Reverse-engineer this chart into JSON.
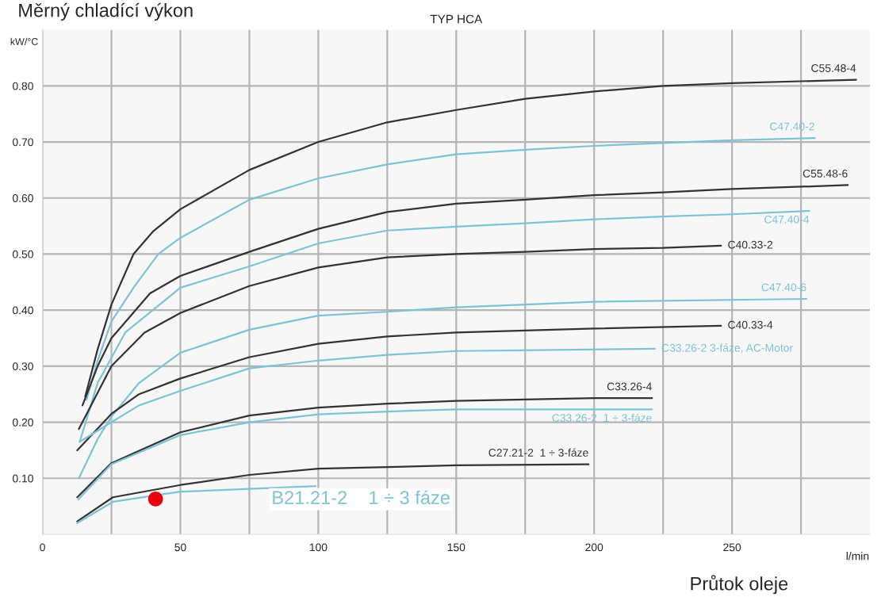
{
  "chart_data": {
    "type": "line",
    "title": "TYP HCA",
    "ylabel": "Měrný chladící výkon",
    "xlabel": "Průtok oleje",
    "annotations": [
      "kW/°C",
      "l/min"
    ],
    "xlim": [
      0,
      300
    ],
    "ylim": [
      0,
      0.9
    ],
    "xticks": [
      0,
      {
        "value": 25,
        "label": null
      },
      50,
      {
        "value": 75,
        "label": null
      },
      100,
      {
        "value": 125,
        "label": null
      },
      150,
      {
        "value": 175,
        "label": null
      },
      200,
      {
        "value": 225,
        "label": null
      },
      250,
      {
        "value": 275,
        "label": null
      }
    ],
    "yticks": [
      {
        "value": 0.1,
        "label": "0.10"
      },
      {
        "value": 0.2,
        "label": "0.20"
      },
      {
        "value": 0.3,
        "label": "0.30"
      },
      {
        "value": 0.4,
        "label": "0.40"
      },
      {
        "value": 0.5,
        "label": "0.50"
      },
      {
        "value": 0.6,
        "label": "0.60"
      },
      {
        "value": 0.7,
        "label": "0.70"
      },
      {
        "value": 0.8,
        "label": "0.80"
      }
    ],
    "grid": true,
    "legend": false,
    "marker": "none",
    "line_style": "solid",
    "series": [
      {
        "name": "C55.48-4",
        "color": "#333333",
        "x": [
          15.5,
          20,
          25,
          33,
          40,
          50,
          75,
          100,
          125,
          150,
          175,
          200,
          225,
          250,
          295
        ],
        "values": [
          0.246,
          0.33,
          0.41,
          0.5,
          0.54,
          0.58,
          0.65,
          0.7,
          0.735,
          0.757,
          0.777,
          0.79,
          0.8,
          0.805,
          0.811
        ]
      },
      {
        "name": "C47.40-2",
        "color": "#7cc4d4",
        "x": [
          16,
          20,
          25,
          33,
          42,
          50,
          75,
          100,
          125,
          150,
          175,
          200,
          250,
          280
        ],
        "values": [
          0.24,
          0.31,
          0.38,
          0.44,
          0.5,
          0.529,
          0.597,
          0.635,
          0.66,
          0.678,
          0.686,
          0.693,
          0.703,
          0.707
        ]
      },
      {
        "name": "C55.48-6",
        "color": "#333333",
        "x": [
          14.5,
          20,
          25,
          39,
          50,
          75,
          100,
          125,
          150,
          175,
          200,
          225,
          250,
          292
        ],
        "values": [
          0.23,
          0.3,
          0.35,
          0.43,
          0.461,
          0.504,
          0.545,
          0.575,
          0.59,
          0.597,
          0.605,
          0.61,
          0.616,
          0.623
        ]
      },
      {
        "name": "C47.40-4",
        "color": "#7cc4d4",
        "x": [
          13.5,
          20,
          30,
          50,
          75,
          100,
          125,
          150,
          175,
          200,
          225,
          250,
          278
        ],
        "values": [
          0.165,
          0.27,
          0.36,
          0.44,
          0.478,
          0.519,
          0.542,
          0.549,
          0.555,
          0.562,
          0.567,
          0.571,
          0.577
        ]
      },
      {
        "name": "C40.33-2",
        "color": "#333333",
        "x": [
          13.2,
          25,
          37,
          50,
          75,
          100,
          125,
          150,
          175,
          200,
          225,
          246
        ],
        "values": [
          0.188,
          0.3,
          0.36,
          0.395,
          0.443,
          0.476,
          0.494,
          0.5,
          0.504,
          0.509,
          0.511,
          0.515
        ]
      },
      {
        "name": "C47.40-6",
        "color": "#7cc4d4",
        "x": [
          13.2,
          20,
          25,
          35,
          50,
          75,
          100,
          125,
          150,
          200,
          277
        ],
        "values": [
          0.1,
          0.17,
          0.21,
          0.27,
          0.324,
          0.365,
          0.39,
          0.397,
          0.405,
          0.415,
          0.42
        ]
      },
      {
        "name": "C40.33-4",
        "color": "#333333",
        "x": [
          12.6,
          25,
          35,
          50,
          75,
          100,
          125,
          150,
          200,
          246
        ],
        "values": [
          0.15,
          0.215,
          0.25,
          0.278,
          0.316,
          0.34,
          0.353,
          0.36,
          0.367,
          0.372
        ]
      },
      {
        "name": "C33.26-2 3-fáze, AC-Motor",
        "color": "#7cc4d4",
        "x": [
          13.5,
          25,
          35,
          50,
          75,
          100,
          125,
          150,
          222
        ],
        "values": [
          0.165,
          0.2,
          0.23,
          0.256,
          0.296,
          0.31,
          0.32,
          0.327,
          0.331
        ]
      },
      {
        "name": "C33.26-4",
        "color": "#333333",
        "x": [
          12.6,
          25,
          50,
          75,
          100,
          125,
          150,
          200,
          221
        ],
        "values": [
          0.066,
          0.127,
          0.182,
          0.212,
          0.226,
          0.233,
          0.238,
          0.243,
          0.243
        ]
      },
      {
        "name": "C33.26-2  1 ÷ 3-fáze",
        "color": "#7cc4d4",
        "x": [
          13,
          25,
          50,
          75,
          100,
          125,
          150,
          221
        ],
        "values": [
          0.062,
          0.125,
          0.177,
          0.2,
          0.214,
          0.219,
          0.223,
          0.223
        ]
      },
      {
        "name": "C27.21-2  1 ÷ 3-fáze",
        "color": "#333333",
        "x": [
          12.6,
          25.5,
          50,
          75,
          100,
          125,
          150,
          198
        ],
        "values": [
          0.023,
          0.066,
          0.088,
          0.106,
          0.117,
          0.12,
          0.123,
          0.125
        ]
      },
      {
        "name": "B21.21-2    1 ÷ 3 fáze",
        "color": "#7cc4d4",
        "x": [
          12.6,
          25.5,
          50,
          75,
          99
        ],
        "values": [
          0.02,
          0.058,
          0.076,
          0.081,
          0.086
        ]
      },
      {
        "type": "scatter",
        "marker": "circle",
        "color": "#e8000b",
        "x": [
          41
        ],
        "values": [
          0.063
        ]
      }
    ]
  }
}
